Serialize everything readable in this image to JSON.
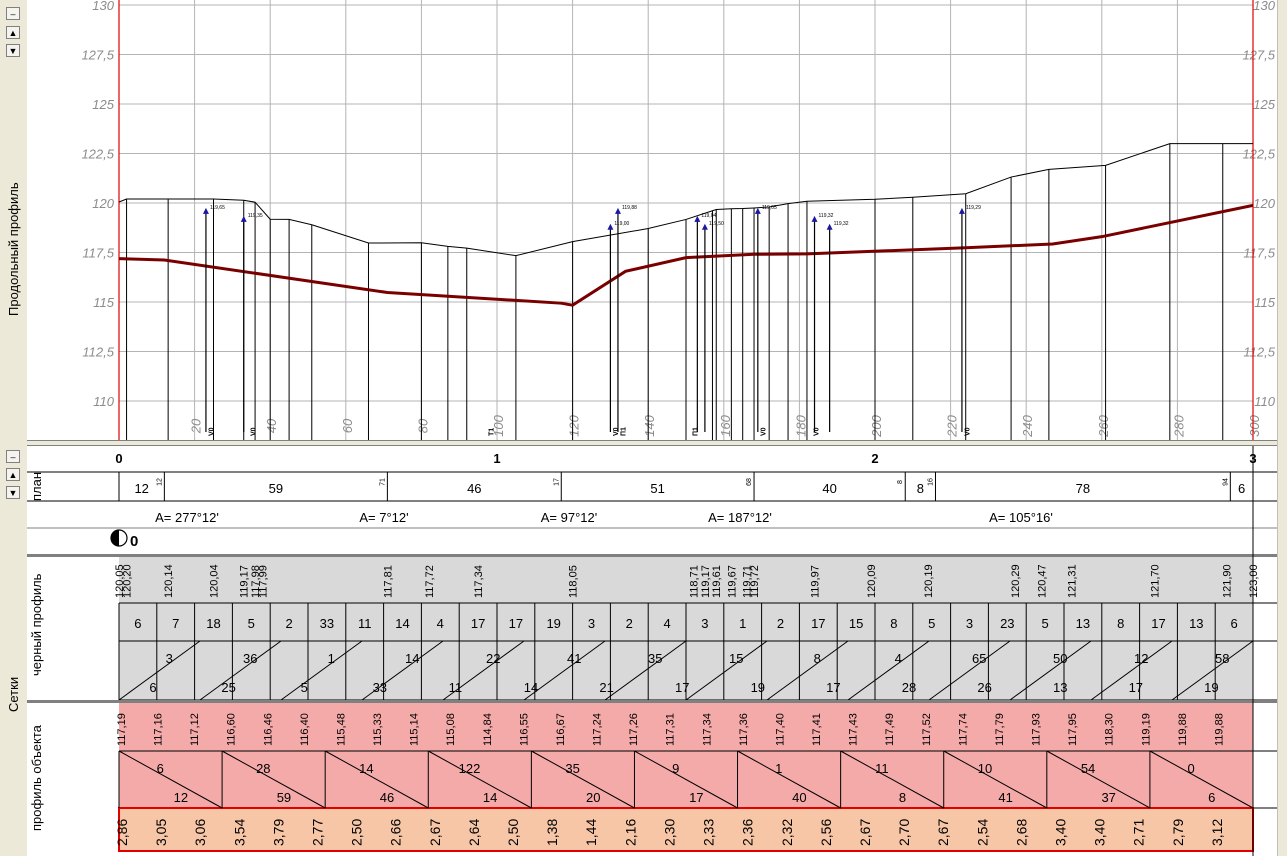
{
  "panels": {
    "profile_title": "Продольный профиль",
    "grids_title": "Сетки",
    "plan_title": "план",
    "black_title": "черный профиль",
    "object_title": "профиль объекта"
  },
  "controls": {
    "minimize": "–",
    "up": "▲",
    "down": "▼"
  },
  "colors": {
    "ground_line": "#000000",
    "design_line": "#7a0000",
    "red_border": "#e00000",
    "grey_band": "#d9d9d9",
    "pink_band": "#f5aaaa",
    "orange_band": "#f7c6a6",
    "grid": "#b4b4b4",
    "axis_label": "#8c8c8c"
  },
  "profile_chart": {
    "y_ticks": [
      "130",
      "127,5",
      "125",
      "122,5",
      "120",
      "117,5",
      "115",
      "112,5",
      "110"
    ],
    "x_ticks": [
      "20",
      "40",
      "60",
      "80",
      "100",
      "120",
      "140",
      "160",
      "180",
      "200",
      "220",
      "240",
      "260",
      "280",
      "300"
    ],
    "bottom_tags": [
      "V0",
      "V0",
      "T1",
      "V0",
      "П1",
      "П1",
      "V0",
      "V0",
      "V0"
    ],
    "ground_x": [
      0,
      2,
      13,
      25,
      33,
      36,
      40,
      45,
      51,
      66,
      80,
      87,
      92,
      105,
      120,
      140,
      150,
      157,
      158,
      162,
      165,
      168,
      172,
      177,
      182,
      200,
      210,
      224,
      236,
      246,
      261,
      278,
      292,
      300
    ],
    "ground_y": [
      120.05,
      120.2,
      120.2,
      120.2,
      120.14,
      120.04,
      119.18,
      119.17,
      118.9,
      117.98,
      117.99,
      117.81,
      117.72,
      117.34,
      118.05,
      118.71,
      119.17,
      119.61,
      119.67,
      119.71,
      119.72,
      119.75,
      119.8,
      119.97,
      120.09,
      120.19,
      120.29,
      120.47,
      121.31,
      121.7,
      121.9,
      123.0,
      123.0,
      123.0
    ],
    "design_x": [
      0,
      12,
      71,
      117,
      120,
      134,
      150,
      168,
      182,
      224,
      247,
      260,
      300
    ],
    "design_y": [
      117.19,
      117.12,
      115.48,
      114.94,
      114.84,
      116.55,
      117.24,
      117.41,
      117.43,
      117.74,
      117.93,
      118.3,
      119.88
    ],
    "point_labels": [
      "119,65",
      "119,35",
      "119,00",
      "119,88",
      "119,04",
      "119,50",
      "119,05",
      "119,32",
      "119,32",
      "119,29"
    ]
  },
  "plan": {
    "pickets": [
      "0",
      "1",
      "2",
      "3"
    ],
    "lengths": [
      "12",
      "59",
      "46",
      "51",
      "40",
      "8",
      "78",
      "6"
    ],
    "small_marks": [
      "12",
      "71",
      "17",
      "68",
      "8",
      "16",
      "94"
    ],
    "angles": [
      "А= 277°12'",
      "А= 7°12'",
      "А= 97°12'",
      "А= 187°12'",
      "А= 105°16'"
    ],
    "curve_label": "0"
  },
  "black_profile": {
    "elevations": [
      "120,05",
      "120,20",
      "120,14",
      "120,04",
      "119,17",
      "117,98",
      "117,99",
      "117,81",
      "117,72",
      "117,34",
      "118,05",
      "118,71",
      "119,17",
      "119,61",
      "119,67",
      "119,71",
      "119,72",
      "119,97",
      "120,09",
      "120,19",
      "120,29",
      "120,47",
      "121,31",
      "121,70",
      "121,90",
      "123,00"
    ],
    "distances": [
      "6",
      "7",
      "18",
      "5",
      "2",
      "33",
      "11",
      "14",
      "4",
      "17",
      "17",
      "19",
      "3",
      "2",
      "4",
      "3",
      "1",
      "2",
      "17",
      "15",
      "8",
      "5",
      "3",
      "23",
      "5",
      "13",
      "8",
      "17",
      "13",
      "6"
    ],
    "slopes_top": [
      "3",
      "36",
      "1",
      "14",
      "22",
      "41",
      "35",
      "15",
      "8",
      "4",
      "65",
      "50",
      "12",
      "58"
    ],
    "slopes_bottom": [
      "6",
      "25",
      "5",
      "33",
      "11",
      "14",
      "21",
      "17",
      "19",
      "17",
      "28",
      "26",
      "13",
      "17",
      "19"
    ]
  },
  "object_profile": {
    "elevations": [
      "117,19",
      "117,16",
      "117,12",
      "116,60",
      "116,46",
      "116,40",
      "115,48",
      "115,33",
      "115,14",
      "115,08",
      "114,84",
      "116,55",
      "116,67",
      "117,24",
      "117,26",
      "117,31",
      "117,34",
      "117,36",
      "117,40",
      "117,41",
      "117,43",
      "117,49",
      "117,52",
      "117,74",
      "117,79",
      "117,93",
      "117,95",
      "118,30",
      "119,19",
      "119,88",
      "119,88"
    ],
    "slopes_top": [
      "6",
      "28",
      "14",
      "122",
      "35",
      "9",
      "1",
      "11",
      "10",
      "54",
      "0"
    ],
    "slopes_bottom": [
      "12",
      "59",
      "46",
      "14",
      "20",
      "17",
      "40",
      "8",
      "41",
      "37",
      "6"
    ],
    "depths": [
      "2,86",
      "3,05",
      "3,06",
      "3,54",
      "3,79",
      "2,77",
      "2,50",
      "2,66",
      "2,67",
      "2,64",
      "2,50",
      "1,38",
      "1,44",
      "2,16",
      "2,30",
      "2,33",
      "2,36",
      "2,32",
      "2,56",
      "2,67",
      "2,70",
      "2,67",
      "2,54",
      "2,68",
      "3,40",
      "3,40",
      "2,71",
      "2,79",
      "3,12"
    ]
  }
}
